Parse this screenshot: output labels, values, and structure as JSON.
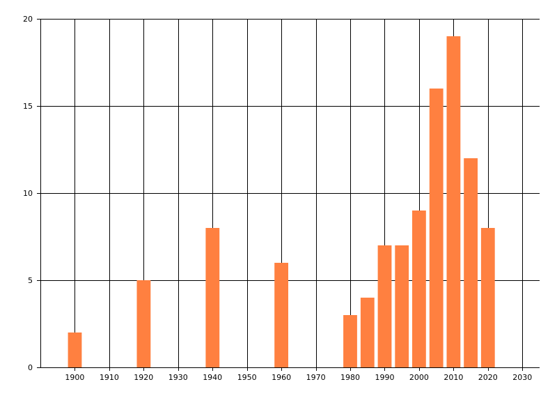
{
  "chart_data": {
    "type": "bar",
    "x": [
      1900,
      1920,
      1940,
      1960,
      1980,
      1985,
      1990,
      1995,
      2000,
      2005,
      2010,
      2015,
      2020
    ],
    "values": [
      2,
      5,
      8,
      6,
      3,
      4,
      7,
      7,
      9,
      16,
      19,
      12,
      8
    ],
    "xlim": [
      1890,
      2035
    ],
    "ylim": [
      0,
      20
    ],
    "x_ticks": [
      "1900",
      "1910",
      "1920",
      "1930",
      "1940",
      "1950",
      "1960",
      "1970",
      "1980",
      "1990",
      "2000",
      "2010",
      "2020",
      "2030"
    ],
    "y_ticks": [
      "0",
      "5",
      "10",
      "15",
      "20"
    ],
    "bar_width_years": 4,
    "grid": true,
    "title": "",
    "xlabel": "",
    "ylabel": "",
    "colors": {
      "bar": "#ff8040",
      "grid": "#000000",
      "axis": "#000000"
    }
  }
}
